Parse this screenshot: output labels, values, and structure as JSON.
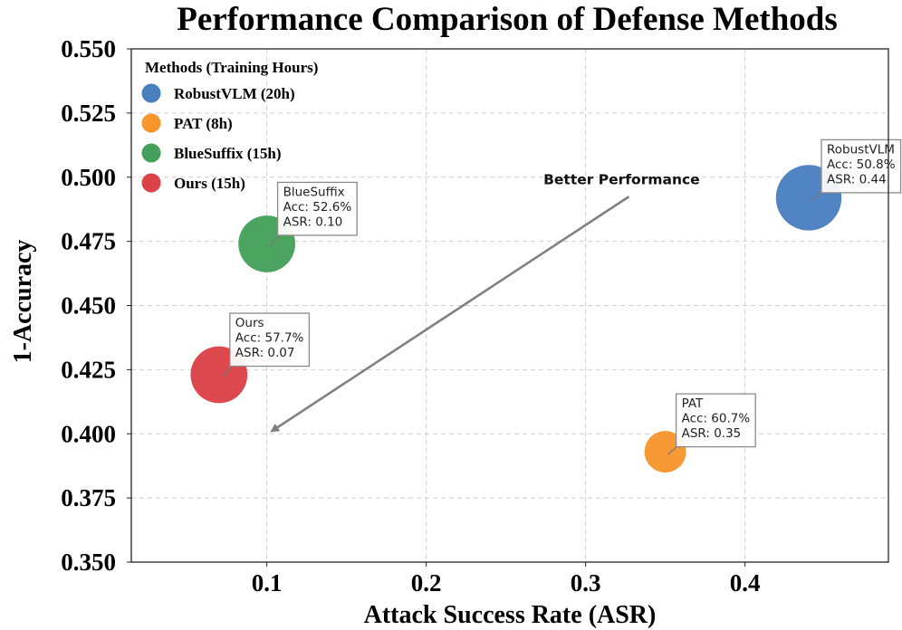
{
  "chart_data": {
    "type": "scatter",
    "title": "Performance Comparison of Defense Methods",
    "xlabel": "Attack Success Rate (ASR)",
    "ylabel": "1-Accuracy",
    "xlim": [
      0.015,
      0.49
    ],
    "ylim": [
      0.35,
      0.55
    ],
    "x_ticks": [
      0.1,
      0.2,
      0.3,
      0.4
    ],
    "x_tick_labels": [
      "0.1",
      "0.2",
      "0.3",
      "0.4"
    ],
    "y_ticks": [
      0.35,
      0.375,
      0.4,
      0.425,
      0.45,
      0.475,
      0.5,
      0.525,
      0.55
    ],
    "y_tick_labels": [
      "0.350",
      "0.375",
      "0.400",
      "0.425",
      "0.450",
      "0.475",
      "0.500",
      "0.525",
      "0.550"
    ],
    "grid": true,
    "legend": {
      "title": "Methods (Training Hours)",
      "placement": "top-left",
      "entries": [
        "RobustVLM (20h)",
        "PAT (8h)",
        "BlueSuffix (15h)",
        "Ours (15h)"
      ]
    },
    "points": [
      {
        "name": "RobustVLM",
        "x": 0.44,
        "y": 0.492,
        "training_hours": 20,
        "color": "#4a7fbf",
        "annotation": [
          "RobustVLM",
          "Acc: 50.8%",
          "ASR: 0.44"
        ]
      },
      {
        "name": "PAT",
        "x": 0.35,
        "y": 0.393,
        "training_hours": 8,
        "color": "#f7962d",
        "annotation": [
          "PAT",
          "Acc: 60.7%",
          "ASR: 0.35"
        ]
      },
      {
        "name": "BlueSuffix",
        "x": 0.1,
        "y": 0.474,
        "training_hours": 15,
        "color": "#44a05a",
        "annotation": [
          "BlueSuffix",
          "Acc: 52.6%",
          "ASR: 0.10"
        ]
      },
      {
        "name": "Ours",
        "x": 0.07,
        "y": 0.423,
        "training_hours": 15,
        "color": "#dc4148",
        "annotation": [
          "Ours",
          "Acc: 57.7%",
          "ASR: 0.07"
        ]
      }
    ],
    "arrow_annotation": {
      "text": "Better Performance",
      "from": [
        0.33,
        0.497
      ],
      "to": [
        0.103,
        0.401
      ]
    }
  }
}
